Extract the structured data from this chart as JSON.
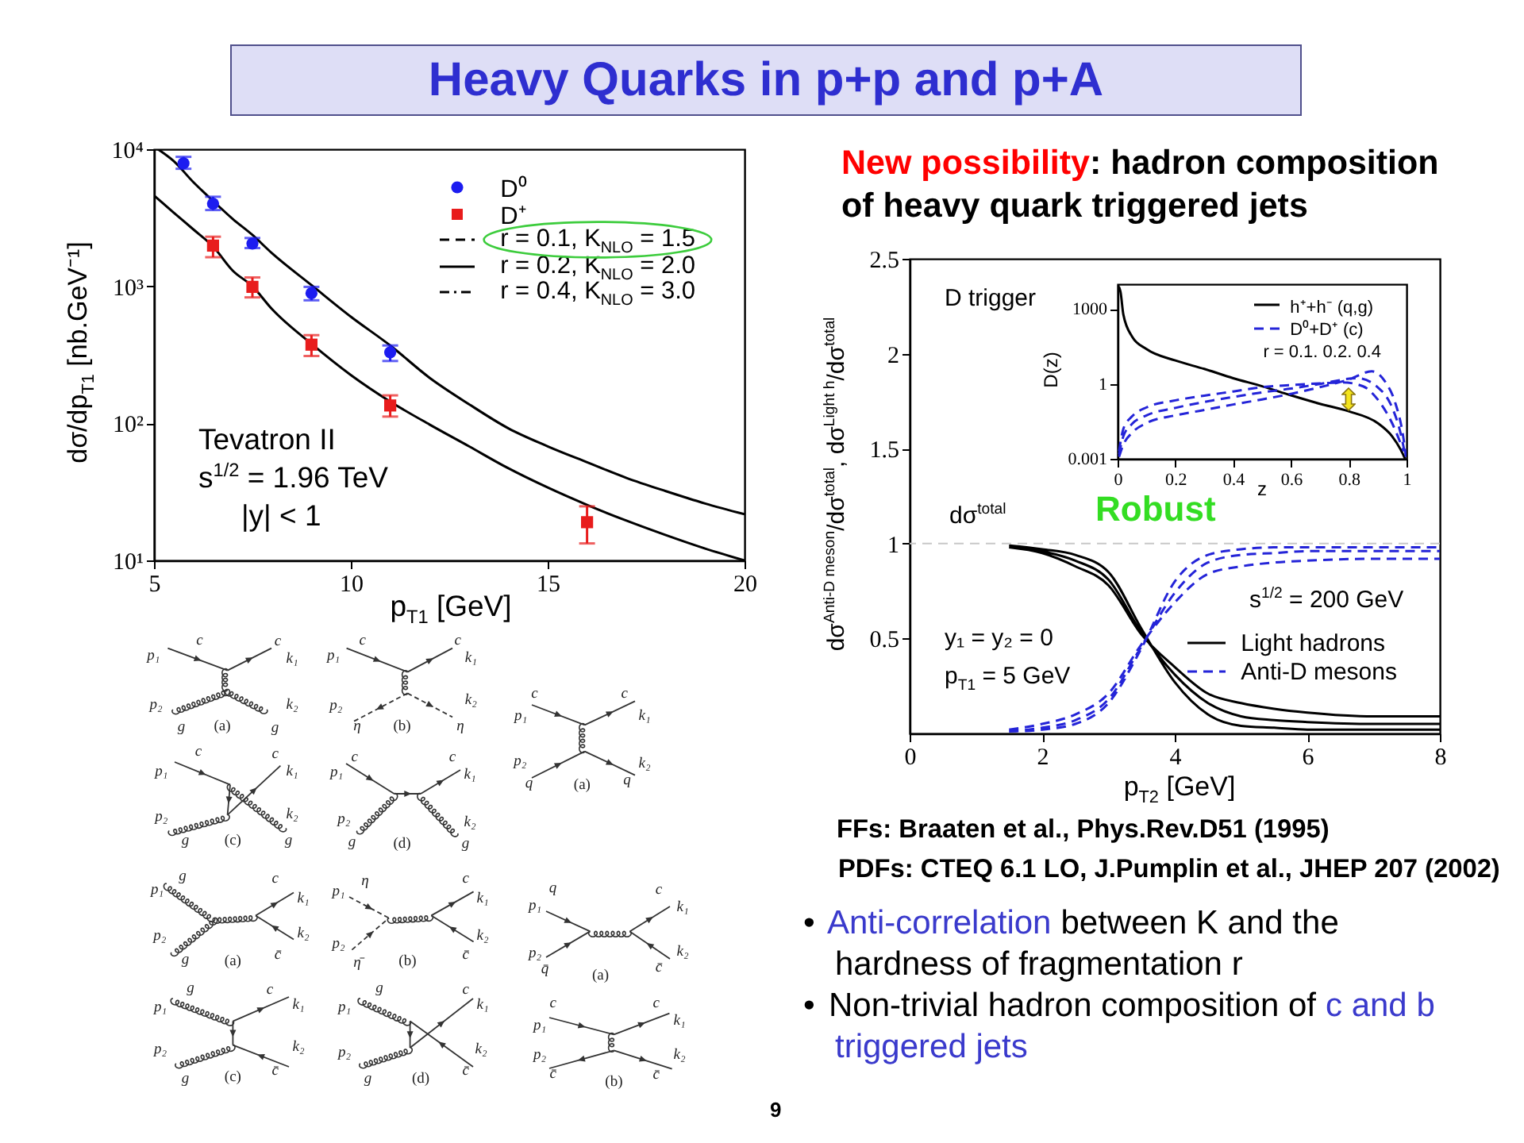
{
  "chart_data": [
    {
      "type": "other",
      "title": "Heavy Quarks in p+p and p+A",
      "annotations": [
        "New possibility",
        ": hadron composition",
        "of heavy quark triggered jets"
      ]
    },
    {
      "type": "line",
      "xlabel": "p$_{T1}$ [GeV]",
      "ylabel": "dσ/dp$_{T1}$ [nb.GeV⁻¹]",
      "log": "y",
      "xlim": [
        5,
        20
      ],
      "xticks": [
        5,
        10,
        15,
        20
      ],
      "ylim": [
        10,
        10000
      ],
      "yticks": [
        {
          "value": 10,
          "label": "10¹"
        },
        {
          "value": 100,
          "label": "10²"
        },
        {
          "value": 1000,
          "label": "10³"
        },
        {
          "value": 10000,
          "label": "10⁴"
        }
      ],
      "legend": "top right",
      "annotations": [
        "Tevatron II",
        "s$^{1/2}$ = 1.96 TeV",
        "|y| < 1",
        "r = 0.1, K$_{NLO}$ = 1.5",
        "r = 0.2, K$_{NLO}$ = 2.0",
        "r = 0.4, K$_{NLO}$ = 3.0"
      ],
      "series": [
        {
          "name": "D⁰",
          "type": "scatter",
          "marker": "circle",
          "color": "#1c1cf0",
          "x": [
            5.75,
            6.5,
            7.5,
            9,
            11
          ],
          "values": [
            7900,
            4000,
            2050,
            890,
            330
          ],
          "errors": [
            [
              7200,
              8800
            ],
            [
              3600,
              4500
            ],
            [
              1900,
              2250
            ],
            [
              790,
              990
            ],
            [
              285,
              370
            ]
          ]
        },
        {
          "name": "D⁺",
          "type": "scatter",
          "marker": "square",
          "color": "#e81c1c",
          "x": [
            6.5,
            7.5,
            9,
            11,
            16
          ],
          "values": [
            1980,
            990,
            375,
            135,
            19
          ],
          "errors": [
            [
              1630,
              2300
            ],
            [
              830,
              1160
            ],
            [
              310,
              440
            ],
            [
              112,
              160
            ],
            [
              13.3,
              24.8
            ]
          ]
        },
        {
          "type": "line",
          "line_style": "solid",
          "color": "#000000",
          "x": [
            5.1,
            5.5,
            6,
            6.5,
            7,
            7.5,
            8,
            9,
            10,
            11,
            12,
            13,
            14,
            15,
            16,
            17,
            18,
            19,
            20,
            null,
            5,
            5.5,
            6,
            6.5,
            7,
            7.5,
            8,
            9,
            10,
            11,
            12,
            13,
            14,
            15,
            16,
            17,
            18,
            19,
            20
          ],
          "values": [
            10000,
            8200,
            5750,
            4200,
            3100,
            2370,
            1740,
            1020,
            600,
            370,
            215,
            138,
            92,
            68,
            52,
            40,
            32,
            26,
            21.7,
            null,
            4600,
            3450,
            2600,
            1950,
            1300,
            1000,
            680,
            380,
            225,
            144,
            98,
            68,
            47,
            34,
            25.4,
            19.5,
            15.3,
            12.2,
            10
          ]
        }
      ]
    },
    {
      "type": "line",
      "xlabel": "p$_{T2}$ [GeV]",
      "ylabel": "dσ$^{Anti-D meson}$/dσ$^{total}$, dσ$^{Light h}$/dσ$^{total}$",
      "xlim": [
        0,
        8
      ],
      "xticks": [
        0,
        2,
        4,
        6,
        8
      ],
      "ylim": [
        0,
        2.5
      ],
      "yticks": [
        0.5,
        1,
        1.5,
        2,
        2.5
      ],
      "legend": "bottom right",
      "ref_lines": [
        {
          "axis": "y",
          "value": 1,
          "label": "dσ$^{total}$",
          "color": "#c8c8c8",
          "line_style": "dashed"
        }
      ],
      "annotations": [
        "D trigger",
        "Robust",
        "s$^{1/2}$ = 200 GeV",
        "y₁ = y₂ = 0",
        "p$_{T1}$ = 5 GeV"
      ],
      "series": [
        {
          "name": "Light hadrons",
          "color": "#000000",
          "line_style": "solid",
          "x": [
            1.5,
            2,
            2.5,
            3,
            3.5,
            4,
            4.5,
            5,
            5.5,
            6,
            7,
            8,
            null,
            1.5,
            2,
            2.5,
            3,
            3.5,
            4,
            4.5,
            5,
            5.5,
            6,
            7,
            8,
            null,
            1.5,
            2,
            2.5,
            3,
            3.5,
            4,
            4.5,
            5,
            5.5,
            6,
            7,
            8
          ],
          "values": [
            0.99,
            0.97,
            0.94,
            0.85,
            0.55,
            0.27,
            0.1,
            0.04,
            0.03,
            0.02,
            0.02,
            0.02,
            null,
            0.99,
            0.96,
            0.91,
            0.81,
            0.53,
            0.31,
            0.16,
            0.09,
            0.07,
            0.06,
            0.05,
            0.05,
            null,
            0.98,
            0.95,
            0.88,
            0.78,
            0.52,
            0.35,
            0.21,
            0.16,
            0.13,
            0.11,
            0.09,
            0.09
          ]
        },
        {
          "name": "Anti-D mesons",
          "color": "#2424d8",
          "line_style": "dashed",
          "x": [
            1.5,
            2,
            2.5,
            3,
            3.5,
            4,
            4.5,
            5,
            5.5,
            6,
            7,
            8,
            null,
            1.5,
            2,
            2.5,
            3,
            3.5,
            4,
            4.5,
            5,
            5.5,
            6,
            7,
            8,
            null,
            1.5,
            2,
            2.5,
            3,
            3.5,
            4,
            4.5,
            5,
            5.5,
            6,
            7,
            8
          ],
          "values": [
            0.01,
            0.02,
            0.05,
            0.16,
            0.45,
            0.8,
            0.94,
            0.97,
            0.98,
            0.98,
            0.98,
            0.98,
            null,
            0.01,
            0.03,
            0.07,
            0.18,
            0.46,
            0.74,
            0.9,
            0.94,
            0.95,
            0.96,
            0.96,
            0.96,
            null,
            0.02,
            0.05,
            0.1,
            0.21,
            0.47,
            0.69,
            0.84,
            0.88,
            0.9,
            0.91,
            0.92,
            0.92
          ]
        }
      ]
    },
    {
      "type": "line",
      "xlabel": "z",
      "ylabel": "D(z)",
      "log": "y",
      "xlim": [
        0,
        1
      ],
      "xticks": [
        0,
        0.2,
        0.4,
        0.6,
        0.8,
        1
      ],
      "ylim": [
        0.001,
        10000
      ],
      "yticks": [
        0.001,
        1,
        1000
      ],
      "legend": "top right",
      "annotations": [
        "r = 0.1. 0.2. 0.4"
      ],
      "series": [
        {
          "name": "h⁺+h⁻ (q,g)",
          "color": "#000000",
          "line_style": "solid",
          "x": [
            0.004,
            0.01,
            0.02,
            0.05,
            0.1,
            0.2,
            0.3,
            0.4,
            0.5,
            0.6,
            0.7,
            0.8,
            0.9,
            0.95,
            0.98,
            0.995
          ],
          "values": [
            8000,
            5000,
            600,
            80,
            25,
            8.7,
            4,
            1.7,
            0.81,
            0.35,
            0.16,
            0.08,
            0.027,
            0.008,
            0.0023,
            0.001
          ]
        },
        {
          "name": "D⁰+D⁺ (c)",
          "color": "#2424d8",
          "line_style": "dashed",
          "x": [
            0.005,
            0.02,
            0.05,
            0.1,
            0.2,
            0.3,
            0.4,
            0.5,
            0.6,
            0.7,
            0.78,
            0.85,
            0.9,
            0.95,
            0.99,
            null,
            0.005,
            0.02,
            0.05,
            0.1,
            0.2,
            0.3,
            0.4,
            0.5,
            0.6,
            0.7,
            0.83,
            0.9,
            0.95,
            0.98,
            0.995,
            null,
            0.005,
            0.02,
            0.05,
            0.1,
            0.2,
            0.3,
            0.4,
            0.5,
            0.6,
            0.7,
            0.8,
            0.88,
            0.93,
            0.96,
            0.99,
            0.998
          ],
          "values": [
            0.002,
            0.016,
            0.05,
            0.115,
            0.22,
            0.34,
            0.5,
            0.74,
            0.9,
            1.05,
            1.15,
            0.8,
            0.24,
            0.027,
            0.002,
            null,
            0.0015,
            0.008,
            0.025,
            0.055,
            0.11,
            0.19,
            0.3,
            0.46,
            0.65,
            1.0,
            1.7,
            0.74,
            0.115,
            0.01,
            0.0015,
            null,
            0.0012,
            0.0037,
            0.011,
            0.027,
            0.055,
            0.09,
            0.15,
            0.24,
            0.4,
            0.74,
            1.5,
            3.2,
            1.05,
            0.19,
            0.006,
            0.0012
          ]
        }
      ]
    },
    {
      "type": "other",
      "annotations": [
        "FFs: Braaten et al., Phys.Rev.D51 (1995)",
        "PDFs: CTEQ 6.1 LO, J.Pumplin et al., JHEP 207 (2002)",
        "•",
        "Anti-correlation",
        "between K and the",
        "hardness of fragmentation r",
        "•",
        "Non-trivial hadron composition of",
        "c and b",
        "triggered jets",
        "9"
      ]
    },
    {
      "type": "other",
      "annotations": [
        "p₁",
        "c",
        "c",
        "k₁",
        "p₂",
        "g",
        "g",
        "k₂",
        "(a)"
      ]
    },
    {
      "type": "other",
      "annotations": [
        "p₁",
        "c",
        "c",
        "k₁",
        "p₂",
        "η",
        "η",
        "k₂",
        "(b)"
      ]
    },
    {
      "type": "other",
      "annotations": [
        "p₁",
        "c",
        "c",
        "k₁",
        "p₂",
        "q",
        "q",
        "k₂",
        "(a)"
      ]
    },
    {
      "type": "other",
      "annotations": [
        "p₁",
        "c",
        "c",
        "k₁",
        "p₂",
        "g",
        "g",
        "k₂",
        "(c)"
      ]
    },
    {
      "type": "other",
      "annotations": [
        "p₁",
        "c",
        "c",
        "k₁",
        "p₂",
        "g",
        "g",
        "k₂",
        "(d)"
      ]
    },
    {
      "type": "other",
      "annotations": [
        "p₁",
        "g",
        "c",
        "k₁",
        "p₂",
        "g",
        "c̄",
        "k₂",
        "(a)"
      ]
    },
    {
      "type": "other",
      "annotations": [
        "p₁",
        "η",
        "c",
        "k₁",
        "p₂",
        "η̄",
        "c̄",
        "k₂",
        "(b)"
      ]
    },
    {
      "type": "other",
      "annotations": [
        "p₁",
        "q",
        "c",
        "k₁",
        "p₂",
        "q̄",
        "c̄",
        "k₂",
        "(a)"
      ]
    },
    {
      "type": "other",
      "annotations": [
        "p₁",
        "g",
        "c",
        "k₁",
        "p₂",
        "g",
        "c̄",
        "k₂",
        "(c)"
      ]
    },
    {
      "type": "other",
      "annotations": [
        "p₁",
        "g",
        "c",
        "k₁",
        "p₂",
        "g",
        "c̄",
        "k₂",
        "(d)"
      ]
    },
    {
      "type": "other",
      "annotations": [
        "p₁",
        "c",
        "c",
        "k₁",
        "p₂",
        "c̄",
        "c̄",
        "k₂",
        "(b)"
      ]
    }
  ]
}
